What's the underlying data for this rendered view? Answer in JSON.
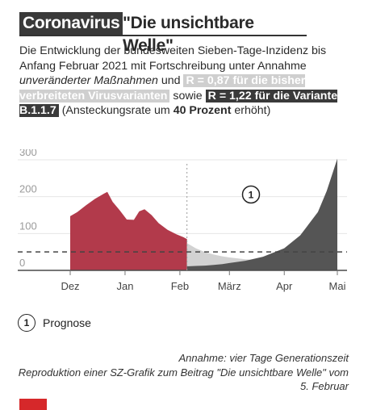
{
  "header": {
    "tag": "Coronavirus",
    "title": "\"Die unsichtbare Welle\""
  },
  "description": {
    "part1": "Die Entwicklung der bundesweiten Sieben-Tage-Inzidenz bis Anfang Februar 2021 mit Fortschreibung unter Annahme ",
    "part1_italic": "unveränderter Maßnahmen",
    "part2": " und ",
    "highlight1": "R = 0,87 für die bisher verbreiteten Virusvarianten",
    "part3": " sowie ",
    "highlight2": "R = 1,22 für die Variante B.1.1.7",
    "part4": " (Ansteckungsrate um ",
    "part4_bold": "40 Prozent",
    "part5": " erhöht)"
  },
  "legend": {
    "marker": "1",
    "label": "Prognose"
  },
  "notes": {
    "line1": "Annahme: vier Tage Generationszeit",
    "line2": "Reproduktion einer SZ-Grafik zum Beitrag \"Die unsichtbare Welle\" vom 5. Februar"
  },
  "colors": {
    "observed": "#b23a4b",
    "forecast_light": "#d2d2d2",
    "forecast_dark": "#555555",
    "grid": "#e6e6e6",
    "axis_text": "#9a9a9a",
    "logo": "#d6282a"
  },
  "chart_data": {
    "type": "area",
    "ylim": [
      0,
      300
    ],
    "yticks": [
      "300",
      "200",
      "100",
      "0"
    ],
    "xticks": [
      "Dez",
      "Jan",
      "Feb",
      "März",
      "Apr",
      "Mai"
    ],
    "grid": true,
    "annotation_marker": "1",
    "reference_line": 50,
    "series": [
      {
        "x": [
          "2020-12-01",
          "2020-12-05",
          "2020-12-10",
          "2020-12-15",
          "2020-12-20",
          "2020-12-22",
          "2020-12-25",
          "2020-12-29",
          "2021-01-02",
          "2021-01-06",
          "2021-01-09",
          "2021-01-12",
          "2021-01-16",
          "2021-01-20",
          "2021-01-25",
          "2021-01-30",
          "2021-02-03",
          "2021-02-05"
        ],
        "values": [
          147,
          158,
          177,
          194,
          208,
          213,
          186,
          163,
          138,
          137,
          160,
          166,
          150,
          128,
          110,
          98,
          90,
          85
        ]
      },
      {
        "x": [
          "2021-02-05",
          "2021-02-10",
          "2021-02-15",
          "2021-02-20",
          "2021-02-25",
          "2021-03-01",
          "2021-03-10",
          "2021-03-20",
          "2021-04-01",
          "2021-04-10",
          "2021-04-20",
          "2021-04-25",
          "2021-05-01"
        ],
        "values": [
          74,
          60,
          50,
          43,
          38,
          35,
          30,
          26,
          22,
          20,
          17,
          16,
          15
        ]
      },
      {
        "x": [
          "2021-02-05",
          "2021-02-10",
          "2021-02-15",
          "2021-02-20",
          "2021-02-25",
          "2021-03-01",
          "2021-03-10",
          "2021-03-20",
          "2021-04-01",
          "2021-04-10",
          "2021-04-20",
          "2021-04-25",
          "2021-05-01"
        ],
        "values": [
          11,
          12,
          13,
          15,
          17,
          20,
          26,
          37,
          60,
          95,
          158,
          215,
          303
        ]
      }
    ]
  }
}
